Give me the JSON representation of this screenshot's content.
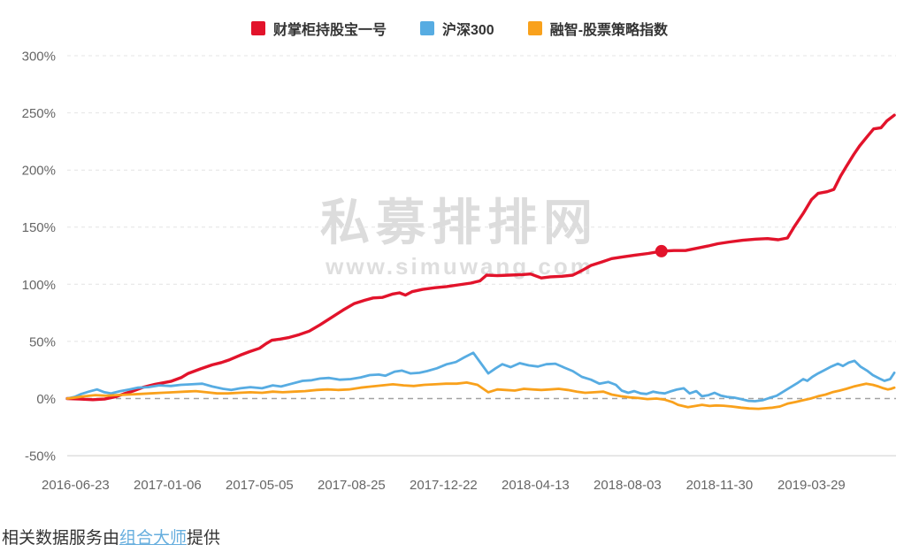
{
  "watermark": {
    "title": "私募排排网",
    "url": "www.simuwang.com"
  },
  "footer": {
    "prefix": "相关数据服务由",
    "link": "组合大师",
    "suffix": "提供"
  },
  "chart_data": {
    "type": "line",
    "title": "",
    "legend_position": "top-center",
    "grid": "horizontal-dashed",
    "y_axis": {
      "range": [
        -50,
        300
      ],
      "unit": "%",
      "ticks": [
        {
          "label": "300%",
          "value": 300
        },
        {
          "label": "250%",
          "value": 250
        },
        {
          "label": "200%",
          "value": 200
        },
        {
          "label": "150%",
          "value": 150
        },
        {
          "label": "100%",
          "value": 100
        },
        {
          "label": "50%",
          "value": 50
        },
        {
          "label": "0%",
          "value": 0
        },
        {
          "label": "-50%",
          "value": -50
        }
      ]
    },
    "x_axis": {
      "ticks": [
        {
          "label": "2016-06-23",
          "pos": 1.0
        },
        {
          "label": "2017-01-06",
          "pos": 12.1
        },
        {
          "label": "2017-05-05",
          "pos": 23.2
        },
        {
          "label": "2017-08-25",
          "pos": 34.3
        },
        {
          "label": "2017-12-22",
          "pos": 45.4
        },
        {
          "label": "2018-04-13",
          "pos": 56.5
        },
        {
          "label": "2018-08-03",
          "pos": 67.6
        },
        {
          "label": "2018-11-30",
          "pos": 78.7
        },
        {
          "label": "2019-03-29",
          "pos": 89.8
        }
      ]
    },
    "series": [
      {
        "name": "财掌柜持股宝一号",
        "color": "#e2132b",
        "points": [
          [
            0,
            0
          ],
          [
            1.5,
            -0.5
          ],
          [
            3.1,
            -1
          ],
          [
            4.5,
            -0.5
          ],
          [
            5.8,
            1.5
          ],
          [
            6.8,
            4
          ],
          [
            7.9,
            6.5
          ],
          [
            9.2,
            10
          ],
          [
            10.6,
            12.5
          ],
          [
            12.5,
            15
          ],
          [
            13.8,
            18.5
          ],
          [
            14.6,
            22
          ],
          [
            16.1,
            26
          ],
          [
            17.5,
            29.5
          ],
          [
            18.6,
            31.5
          ],
          [
            19.6,
            34
          ],
          [
            20.9,
            38
          ],
          [
            22,
            41
          ],
          [
            23.2,
            44
          ],
          [
            23.9,
            47.5
          ],
          [
            24.7,
            51
          ],
          [
            25.7,
            52
          ],
          [
            26.8,
            53.5
          ],
          [
            28,
            56
          ],
          [
            29.2,
            59
          ],
          [
            30.5,
            64.5
          ],
          [
            31.9,
            71
          ],
          [
            33.3,
            77.5
          ],
          [
            34.6,
            83
          ],
          [
            35.9,
            86
          ],
          [
            36.9,
            88
          ],
          [
            38,
            88.5
          ],
          [
            39.3,
            91.5
          ],
          [
            40.1,
            92.5
          ],
          [
            40.8,
            90.5
          ],
          [
            41.6,
            93.5
          ],
          [
            42.9,
            95.5
          ],
          [
            44.4,
            97
          ],
          [
            45.8,
            98
          ],
          [
            47.2,
            99.5
          ],
          [
            48.7,
            101
          ],
          [
            49.8,
            103
          ],
          [
            50.6,
            108
          ],
          [
            51.9,
            107.5
          ],
          [
            53.3,
            108
          ],
          [
            54.9,
            108.5
          ],
          [
            55.9,
            109
          ],
          [
            57.2,
            105.5
          ],
          [
            58.3,
            106.5
          ],
          [
            59.7,
            107
          ],
          [
            61,
            108
          ],
          [
            62.1,
            112
          ],
          [
            63.2,
            116.5
          ],
          [
            64.5,
            119.5
          ],
          [
            65.7,
            122.5
          ],
          [
            67.1,
            124
          ],
          [
            68.5,
            125.5
          ],
          [
            70.1,
            127
          ],
          [
            71.7,
            129
          ],
          [
            73.2,
            129.5
          ],
          [
            74.6,
            129.5
          ],
          [
            76,
            131.5
          ],
          [
            77.3,
            133.5
          ],
          [
            78.5,
            135.5
          ],
          [
            79.9,
            137
          ],
          [
            81.5,
            138.5
          ],
          [
            83.1,
            139.5
          ],
          [
            84.5,
            140
          ],
          [
            85.8,
            139
          ],
          [
            86.9,
            140.5
          ],
          [
            87.7,
            150
          ],
          [
            88.8,
            162
          ],
          [
            89.8,
            174
          ],
          [
            90.6,
            179.5
          ],
          [
            91.7,
            181
          ],
          [
            92.5,
            183
          ],
          [
            93.3,
            194.5
          ],
          [
            94,
            203
          ],
          [
            94.9,
            213.5
          ],
          [
            95.6,
            221
          ],
          [
            96.5,
            229
          ],
          [
            97.3,
            236
          ],
          [
            98.2,
            237
          ],
          [
            98.9,
            243
          ],
          [
            99.8,
            248
          ]
        ]
      },
      {
        "name": "沪深300",
        "color": "#57ace2",
        "points": [
          [
            0,
            0
          ],
          [
            0.9,
            1.5
          ],
          [
            1.7,
            4
          ],
          [
            2.6,
            6
          ],
          [
            3.6,
            8
          ],
          [
            4.5,
            5.5
          ],
          [
            5.3,
            4.5
          ],
          [
            6.4,
            6.5
          ],
          [
            7.5,
            8
          ],
          [
            8.5,
            9.5
          ],
          [
            9.8,
            10
          ],
          [
            11.1,
            11.5
          ],
          [
            12.5,
            11
          ],
          [
            13.7,
            12
          ],
          [
            15,
            12.5
          ],
          [
            16.3,
            13
          ],
          [
            17.5,
            10.5
          ],
          [
            18.8,
            8.5
          ],
          [
            19.8,
            7.5
          ],
          [
            20.9,
            9
          ],
          [
            22.1,
            10
          ],
          [
            23.5,
            9
          ],
          [
            24.8,
            11.5
          ],
          [
            25.8,
            10.5
          ],
          [
            27.1,
            13
          ],
          [
            28.4,
            15.5
          ],
          [
            29.5,
            16
          ],
          [
            30.5,
            17.5
          ],
          [
            31.6,
            18
          ],
          [
            32.9,
            16.5
          ],
          [
            34.2,
            17
          ],
          [
            35.4,
            18.5
          ],
          [
            36.5,
            20.5
          ],
          [
            37.6,
            21
          ],
          [
            38.4,
            20
          ],
          [
            39.5,
            23.5
          ],
          [
            40.4,
            24.5
          ],
          [
            41.4,
            22
          ],
          [
            42.5,
            22.5
          ],
          [
            43.4,
            24
          ],
          [
            44.6,
            26.5
          ],
          [
            45.8,
            30
          ],
          [
            46.9,
            32
          ],
          [
            47.9,
            36
          ],
          [
            49,
            40
          ],
          [
            49.9,
            31
          ],
          [
            50.8,
            22
          ],
          [
            51.7,
            26.5
          ],
          [
            52.5,
            30
          ],
          [
            53.5,
            27.5
          ],
          [
            54.6,
            31
          ],
          [
            55.7,
            29
          ],
          [
            56.8,
            28
          ],
          [
            57.8,
            30
          ],
          [
            58.9,
            30.5
          ],
          [
            60,
            27
          ],
          [
            61,
            24
          ],
          [
            62.1,
            19
          ],
          [
            63.2,
            16.5
          ],
          [
            64.2,
            13
          ],
          [
            65.3,
            14.5
          ],
          [
            66.2,
            12
          ],
          [
            66.9,
            7
          ],
          [
            67.7,
            5
          ],
          [
            68.4,
            6.5
          ],
          [
            69.2,
            4.5
          ],
          [
            69.9,
            4
          ],
          [
            70.7,
            6
          ],
          [
            71.4,
            5
          ],
          [
            72.1,
            4.5
          ],
          [
            72.9,
            6.5
          ],
          [
            73.6,
            8
          ],
          [
            74.4,
            9
          ],
          [
            75.1,
            4.5
          ],
          [
            75.9,
            6.5
          ],
          [
            76.6,
            2
          ],
          [
            77.4,
            3
          ],
          [
            78.1,
            5
          ],
          [
            78.9,
            2.5
          ],
          [
            79.6,
            1.5
          ],
          [
            80.5,
            0.8
          ],
          [
            81.3,
            -0.5
          ],
          [
            82.2,
            -2
          ],
          [
            83,
            -2.3
          ],
          [
            83.9,
            -1.5
          ],
          [
            84.7,
            0.5
          ],
          [
            85.6,
            2.5
          ],
          [
            86.4,
            6
          ],
          [
            87.3,
            10
          ],
          [
            88.2,
            14
          ],
          [
            88.8,
            17
          ],
          [
            89.3,
            15.5
          ],
          [
            89.9,
            19
          ],
          [
            90.6,
            22
          ],
          [
            91.4,
            25
          ],
          [
            92.2,
            28
          ],
          [
            93,
            30.5
          ],
          [
            93.6,
            28.5
          ],
          [
            94.3,
            31.5
          ],
          [
            95,
            33
          ],
          [
            95.7,
            28
          ],
          [
            96.5,
            24.5
          ],
          [
            97.2,
            20.5
          ],
          [
            98,
            17.5
          ],
          [
            98.6,
            15.5
          ],
          [
            99.3,
            17
          ],
          [
            99.8,
            22.5
          ]
        ]
      },
      {
        "name": "融智-股票策略指数",
        "color": "#f9a11c",
        "points": [
          [
            0,
            0
          ],
          [
            1.1,
            1
          ],
          [
            2.1,
            2
          ],
          [
            3.4,
            3
          ],
          [
            4.7,
            2.5
          ],
          [
            6,
            3
          ],
          [
            7.4,
            3.5
          ],
          [
            8.8,
            4
          ],
          [
            10,
            4.5
          ],
          [
            11.4,
            5
          ],
          [
            12.8,
            5.5
          ],
          [
            14.2,
            6
          ],
          [
            15.5,
            6.5
          ],
          [
            16.8,
            5.5
          ],
          [
            18.1,
            4.5
          ],
          [
            19.4,
            4.5
          ],
          [
            20.7,
            5
          ],
          [
            22.1,
            5.5
          ],
          [
            23.5,
            5
          ],
          [
            24.8,
            6
          ],
          [
            26,
            5.5
          ],
          [
            27.4,
            6
          ],
          [
            28.7,
            6.5
          ],
          [
            30.1,
            7.5
          ],
          [
            31.4,
            8
          ],
          [
            32.7,
            7.5
          ],
          [
            34,
            8
          ],
          [
            35.4,
            9.5
          ],
          [
            36.7,
            10.5
          ],
          [
            38,
            11.5
          ],
          [
            39.3,
            12.5
          ],
          [
            40.6,
            11.5
          ],
          [
            41.8,
            11
          ],
          [
            43.1,
            12
          ],
          [
            44.4,
            12.5
          ],
          [
            45.7,
            13
          ],
          [
            47,
            13
          ],
          [
            48.2,
            14
          ],
          [
            49.5,
            12
          ],
          [
            50.8,
            5.5
          ],
          [
            51.9,
            8
          ],
          [
            52.9,
            7.5
          ],
          [
            54,
            7
          ],
          [
            55.1,
            8.5
          ],
          [
            56.1,
            8
          ],
          [
            57.2,
            7.5
          ],
          [
            58.3,
            8
          ],
          [
            59.3,
            8.5
          ],
          [
            60.4,
            7.5
          ],
          [
            61.5,
            6
          ],
          [
            62.5,
            5
          ],
          [
            63.6,
            5.5
          ],
          [
            64.7,
            6
          ],
          [
            65.7,
            3.5
          ],
          [
            66.8,
            2
          ],
          [
            67.9,
            1
          ],
          [
            68.9,
            0.5
          ],
          [
            70,
            -0.5
          ],
          [
            71.1,
            0
          ],
          [
            72.1,
            -1
          ],
          [
            73,
            -3
          ],
          [
            73.7,
            -5.5
          ],
          [
            74.9,
            -7.5
          ],
          [
            75.8,
            -6.5
          ],
          [
            76.6,
            -5.5
          ],
          [
            77.5,
            -6.5
          ],
          [
            78.3,
            -6
          ],
          [
            79.2,
            -6.3
          ],
          [
            80.2,
            -7
          ],
          [
            81.3,
            -8
          ],
          [
            82.3,
            -8.7
          ],
          [
            83.4,
            -9
          ],
          [
            84.2,
            -8.5
          ],
          [
            85.1,
            -8
          ],
          [
            86,
            -7
          ],
          [
            86.9,
            -4.5
          ],
          [
            87.9,
            -3
          ],
          [
            88.8,
            -1.5
          ],
          [
            89.7,
            0
          ],
          [
            90.6,
            2
          ],
          [
            91.5,
            3.5
          ],
          [
            92.3,
            5.5
          ],
          [
            93.2,
            7
          ],
          [
            94,
            8.5
          ],
          [
            94.9,
            10.5
          ],
          [
            95.8,
            12
          ],
          [
            96.4,
            13
          ],
          [
            97.2,
            12
          ],
          [
            97.9,
            10.5
          ],
          [
            98.5,
            9
          ],
          [
            99,
            8
          ],
          [
            99.4,
            8.5
          ],
          [
            99.8,
            9.5
          ]
        ]
      }
    ],
    "marker": {
      "series": "财掌柜持股宝一号",
      "pos": 71.7,
      "value": 129,
      "color": "#e2132b"
    }
  }
}
